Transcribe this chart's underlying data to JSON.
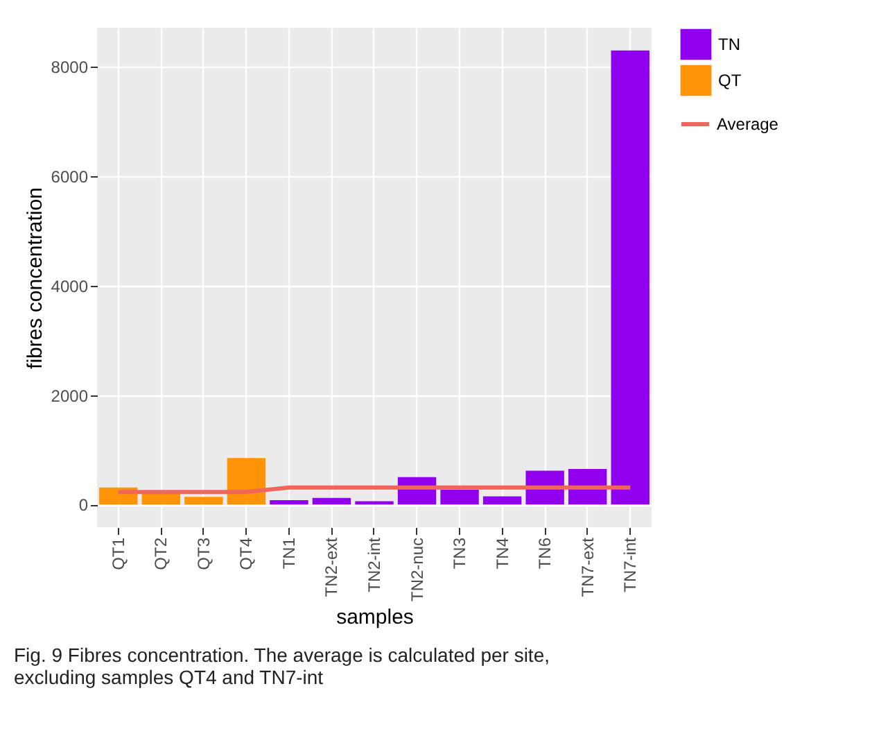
{
  "chart_data": {
    "type": "bar",
    "xlabel": "samples",
    "ylabel": "fibres concentration",
    "categories": [
      "QT1",
      "QT2",
      "QT3",
      "QT4",
      "TN1",
      "TN2-ext",
      "TN2-int",
      "TN2-nuc",
      "TN3",
      "TN4",
      "TN6",
      "TN7-ext",
      "TN7-int"
    ],
    "series": [
      {
        "name": "TN",
        "color": "#9000ee",
        "values": [
          null,
          null,
          null,
          null,
          80,
          120,
          60,
          500,
          270,
          150,
          620,
          650,
          8300
        ]
      },
      {
        "name": "QT",
        "color": "#ff9408",
        "values": [
          310,
          230,
          140,
          850,
          null,
          null,
          null,
          null,
          null,
          null,
          null,
          null,
          null
        ]
      },
      {
        "name": "Average",
        "type": "line",
        "color": "#f0655c",
        "values": [
          230,
          230,
          230,
          230,
          310,
          310,
          310,
          310,
          310,
          310,
          310,
          310,
          310
        ]
      }
    ],
    "ylim": [
      -415,
      8715
    ],
    "yticks": [
      0,
      2000,
      4000,
      6000,
      8000
    ],
    "grid": true,
    "legend": "right",
    "annotations": [
      "Fig. 9  Fibres concentration. The average is calculated per site, excluding samples QT4 and TN7-int"
    ]
  }
}
